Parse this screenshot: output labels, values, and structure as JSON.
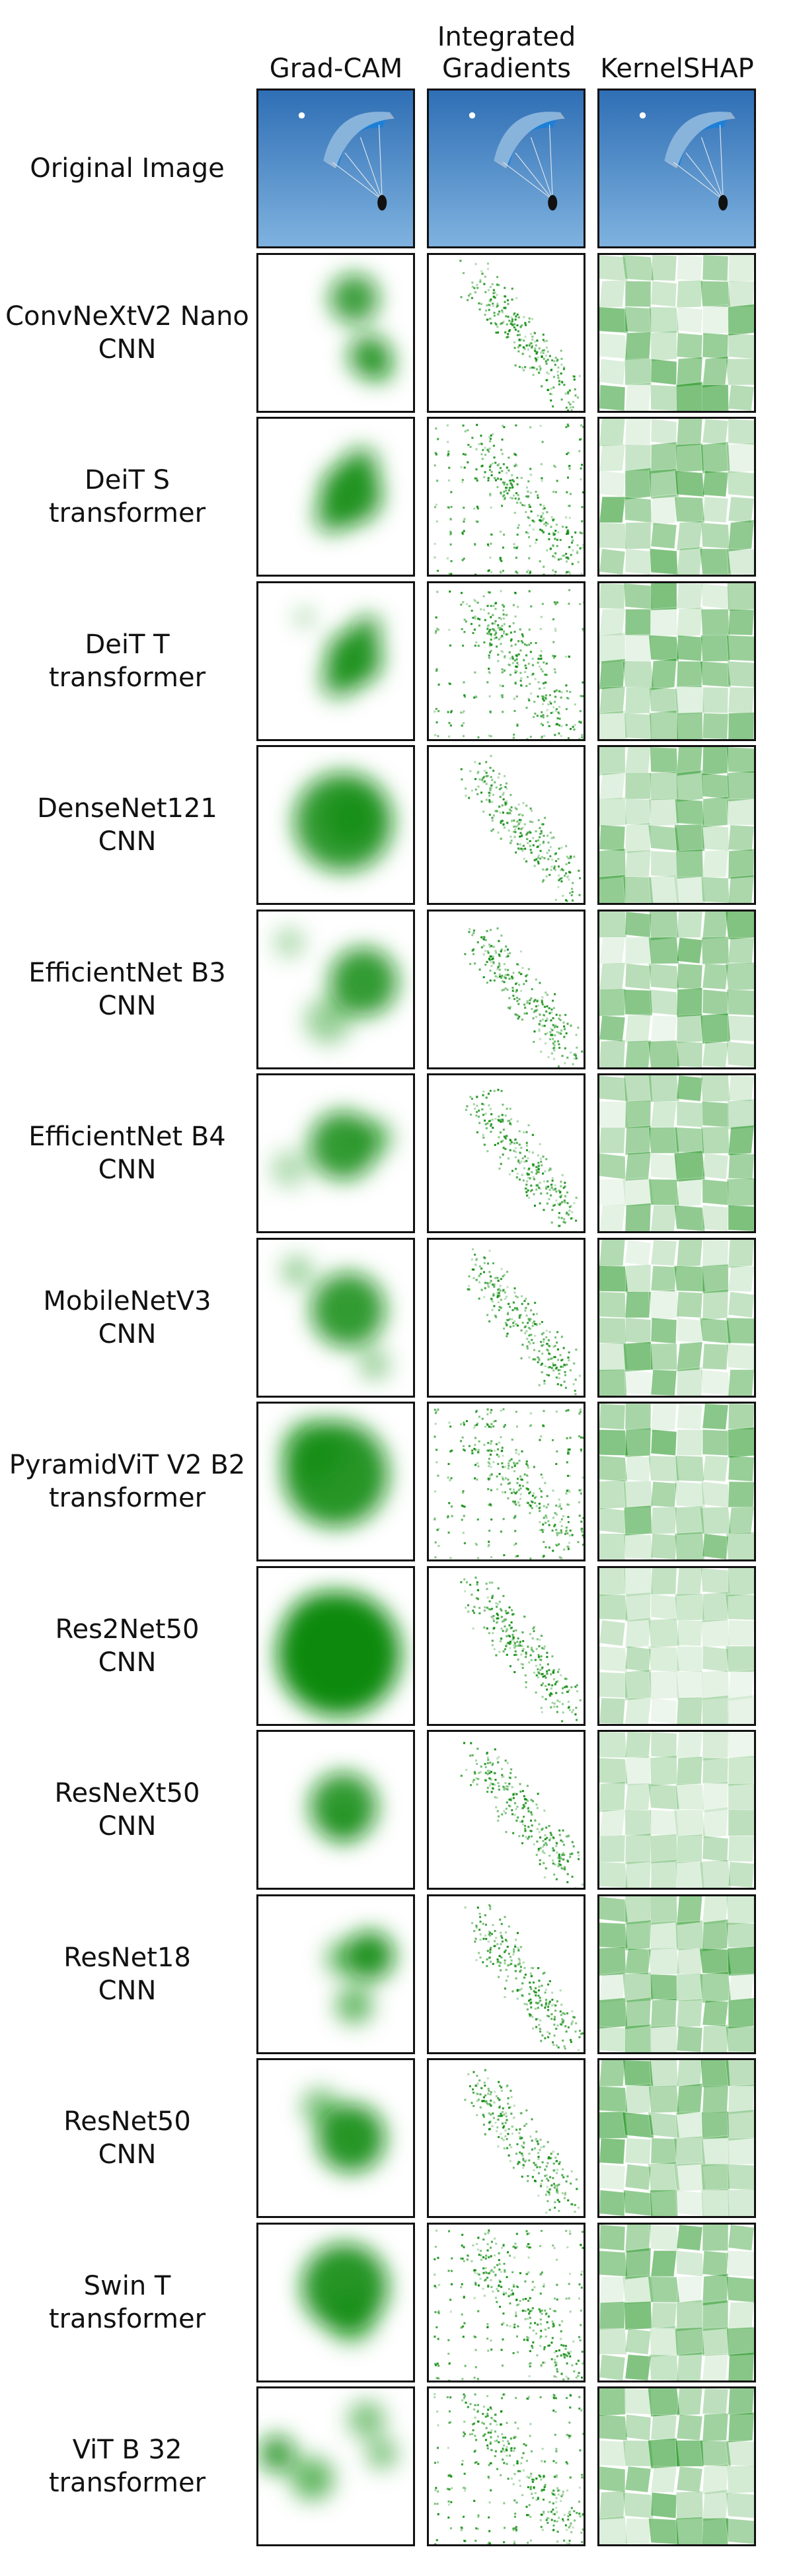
{
  "columns": [
    {
      "label": "Grad-CAM",
      "type": "gradcam"
    },
    {
      "label": "Integrated\nGradients",
      "type": "ig"
    },
    {
      "label": "KernelSHAP",
      "type": "shap"
    }
  ],
  "rows": [
    {
      "name": "Original Image",
      "kind": "",
      "original": true
    },
    {
      "name": "ConvNeXtV2 Nano",
      "kind": "CNN"
    },
    {
      "name": "DeiT S",
      "kind": "transformer"
    },
    {
      "name": "DeiT T",
      "kind": "transformer"
    },
    {
      "name": "DenseNet121",
      "kind": "CNN"
    },
    {
      "name": "EfficientNet B3",
      "kind": "CNN"
    },
    {
      "name": "EfficientNet B4",
      "kind": "CNN"
    },
    {
      "name": "MobileNetV3",
      "kind": "CNN"
    },
    {
      "name": "PyramidViT V2 B2",
      "kind": "transformer"
    },
    {
      "name": "Res2Net50",
      "kind": "CNN"
    },
    {
      "name": "ResNeXt50",
      "kind": "CNN"
    },
    {
      "name": "ResNet18",
      "kind": "CNN"
    },
    {
      "name": "ResNet50",
      "kind": "CNN"
    },
    {
      "name": "Swin T",
      "kind": "transformer"
    },
    {
      "name": "ViT B 32",
      "kind": "transformer"
    }
  ],
  "colors": {
    "attribution": "#0a8a0a",
    "sky_top": "#2f6fb5",
    "sky_bottom": "#7fb2df",
    "canopy": "#1e7fd6"
  }
}
